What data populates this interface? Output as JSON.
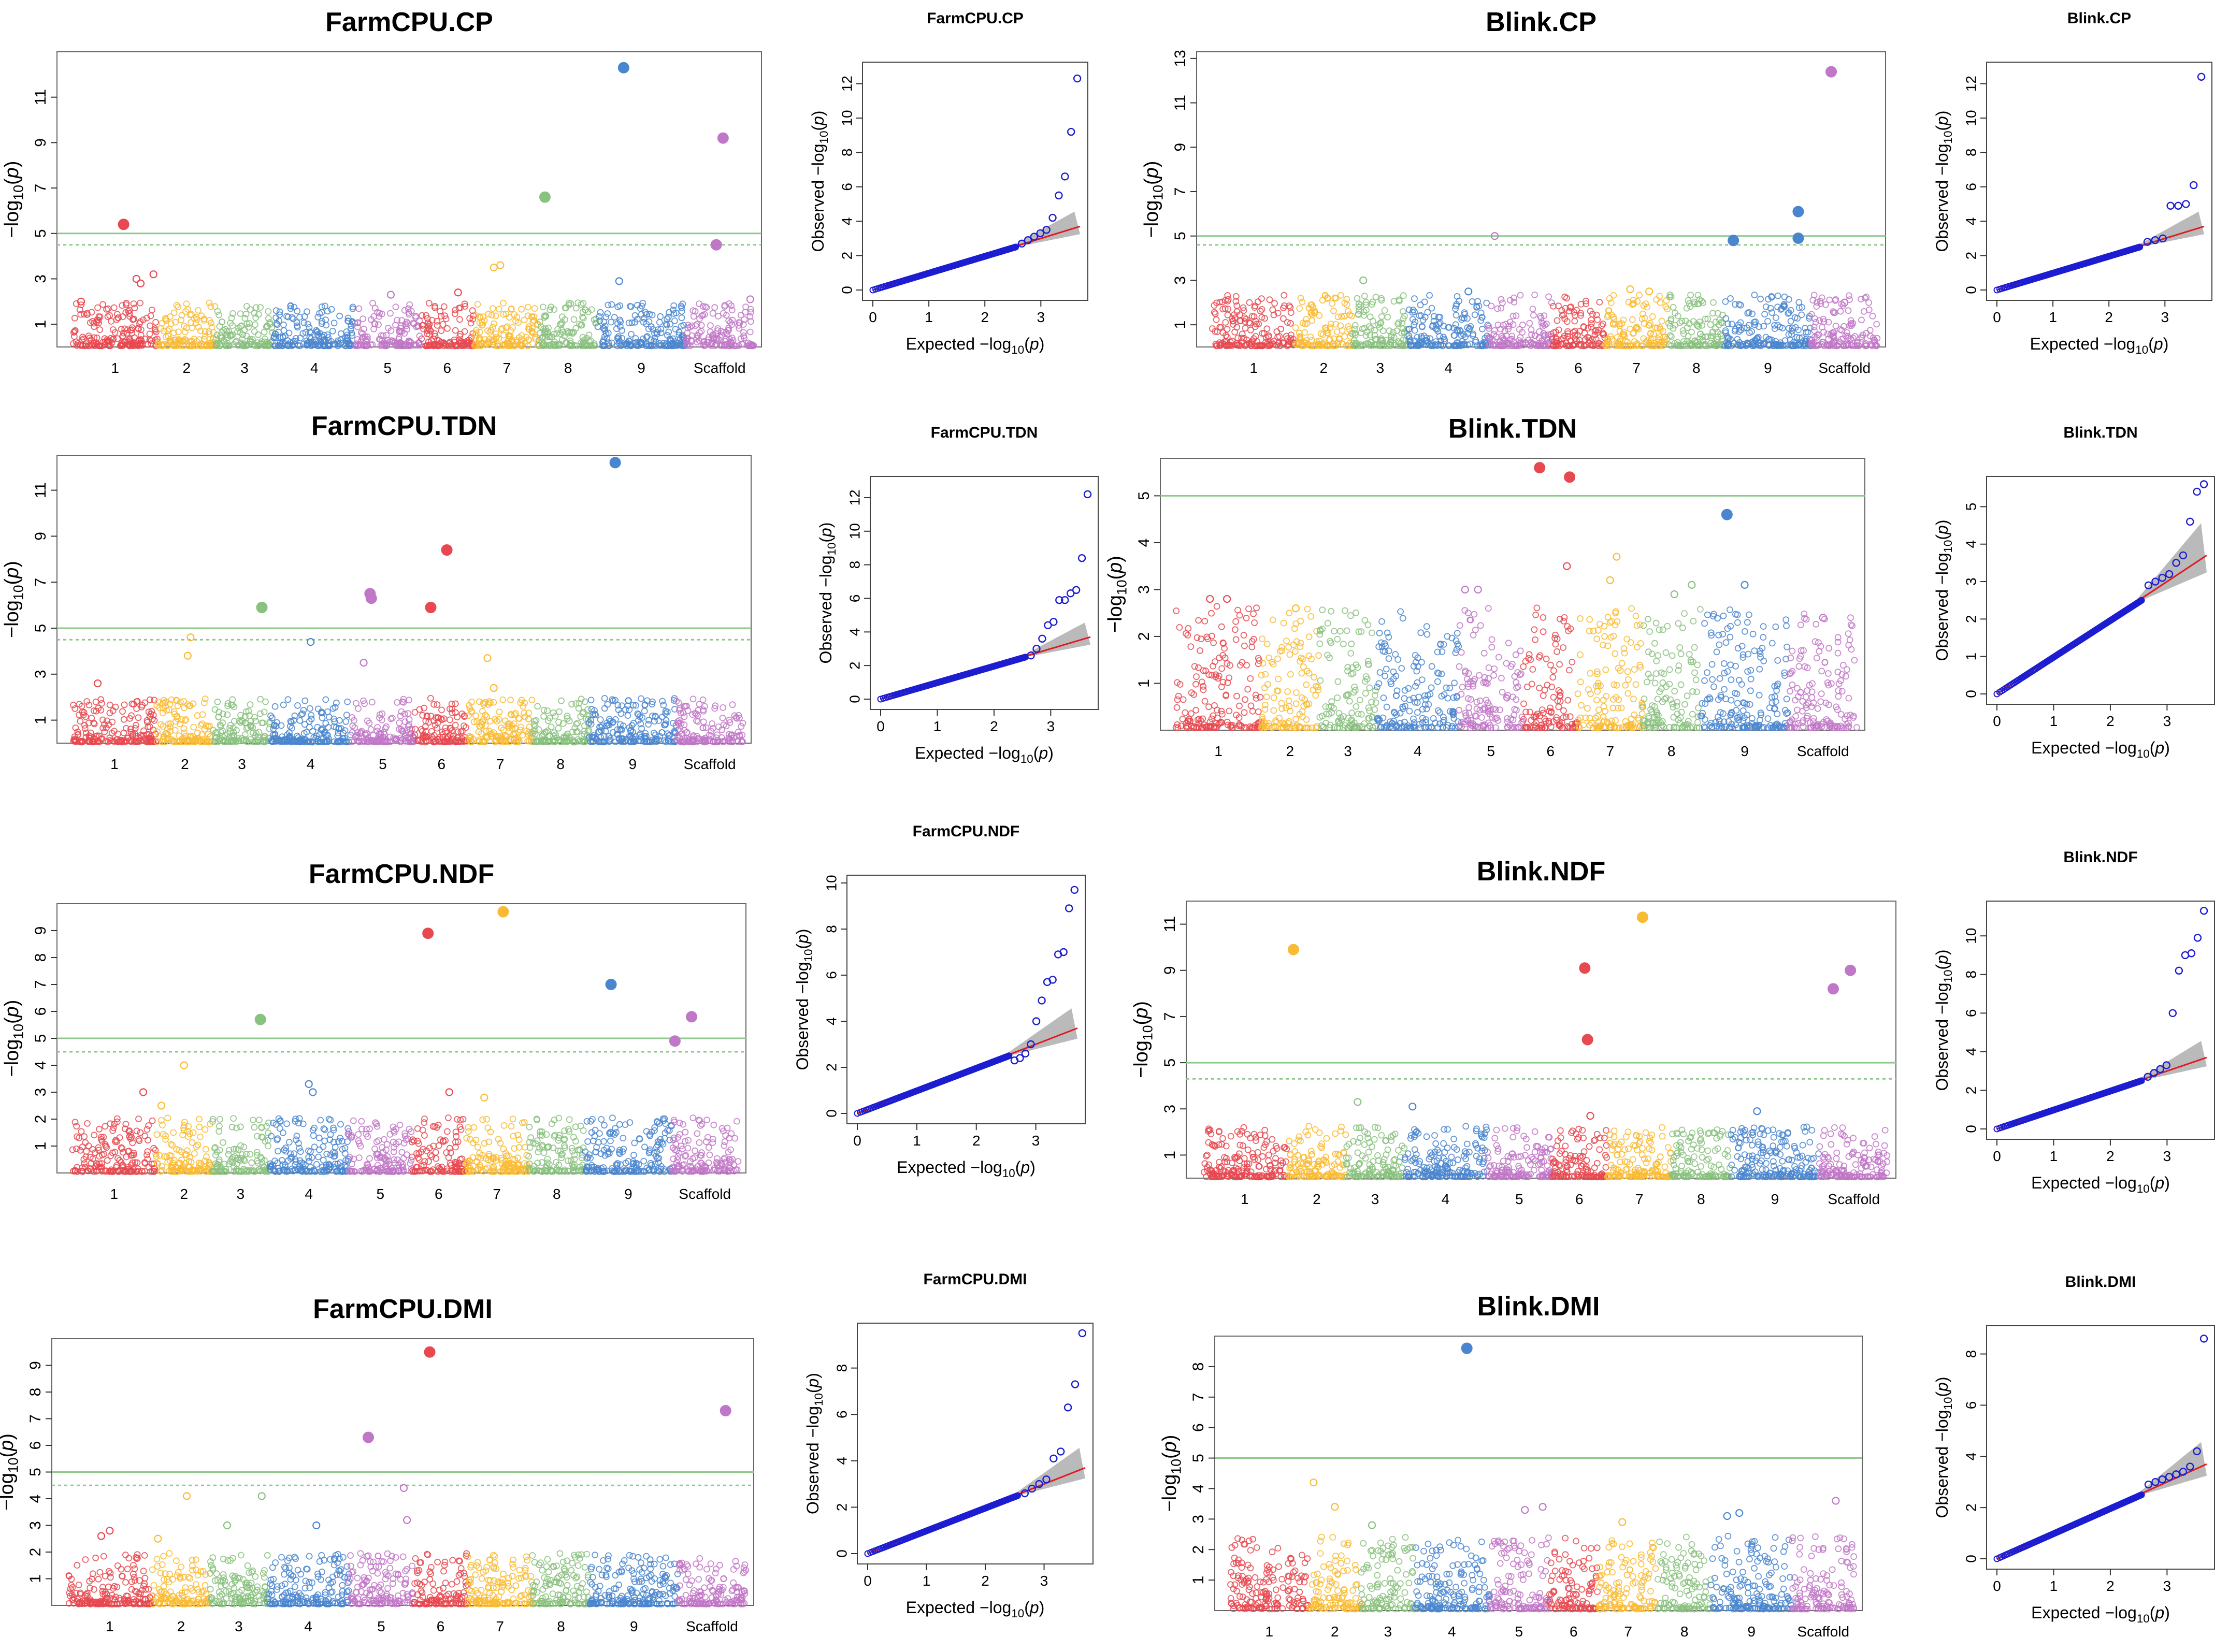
{
  "colors": {
    "chr1": "#e8484f",
    "chr2": "#f9bb34",
    "chr3": "#89c17f",
    "chr4": "#4a86cf",
    "chr5": "#c177c7",
    "chr6": "#e8484f",
    "chr7": "#f9bb34",
    "chr8": "#89c17f",
    "chr9": "#4a86cf",
    "scaffold": "#c177c7",
    "threshold": "#8dc98a",
    "qq_points": "#1c1cd1",
    "qq_line": "#e0191f",
    "qq_band": "#b3b3b3"
  },
  "chart_data": [
    {
      "type": "scatter",
      "id": "manhattan-farmcpu-cp",
      "title": "FarmCPU.CP",
      "ylabel": "−log10(p)",
      "chromosomes": [
        "1",
        "2",
        "3",
        "4",
        "5",
        "6",
        "7",
        "8",
        "9",
        "Scaffold"
      ],
      "yticks": [
        1,
        3,
        5,
        7,
        9,
        11
      ],
      "ylim": [
        0,
        13
      ],
      "thresholds": [
        5.0,
        4.5
      ],
      "noise_max": 1.9,
      "highlight": [
        {
          "chr": "1",
          "pos": 0.6,
          "y": 5.4,
          "big": true
        },
        {
          "chr": "1",
          "pos": 0.75,
          "y": 3.0
        },
        {
          "chr": "1",
          "pos": 0.8,
          "y": 2.8
        },
        {
          "chr": "1",
          "pos": 0.95,
          "y": 3.2
        },
        {
          "chr": "1",
          "pos": 0.1,
          "y": 2.0
        },
        {
          "chr": "5",
          "pos": 0.55,
          "y": 2.3
        },
        {
          "chr": "6",
          "pos": 0.7,
          "y": 2.4
        },
        {
          "chr": "7",
          "pos": 0.3,
          "y": 3.5
        },
        {
          "chr": "7",
          "pos": 0.4,
          "y": 3.6
        },
        {
          "chr": "8",
          "pos": 0.1,
          "y": 6.6,
          "big": true
        },
        {
          "chr": "9",
          "pos": 0.3,
          "y": 12.3,
          "big": true
        },
        {
          "chr": "9",
          "pos": 0.25,
          "y": 2.9
        },
        {
          "chr": "Scaffold",
          "pos": 0.55,
          "y": 9.2,
          "big": true
        },
        {
          "chr": "Scaffold",
          "pos": 0.45,
          "y": 4.5,
          "big": true
        },
        {
          "chr": "Scaffold",
          "pos": 0.95,
          "y": 2.1
        }
      ]
    },
    {
      "type": "scatter",
      "id": "qq-farmcpu-cp",
      "title": "FarmCPU.CP",
      "xlabel": "Expected  −log10(p)",
      "ylabel": "Observed  −log10(p)",
      "xticks": [
        0,
        1,
        2,
        3
      ],
      "yticks": [
        0,
        2,
        4,
        6,
        8,
        10,
        12
      ],
      "xlim": [
        0,
        3.7
      ],
      "ylim": [
        0,
        12.8
      ],
      "tail": [
        2.7,
        2.9,
        3.1,
        3.3,
        3.5,
        4.2,
        5.5,
        6.6,
        9.2,
        12.3
      ]
    },
    {
      "type": "scatter",
      "id": "manhattan-blink-cp",
      "title": "Blink.CP",
      "ylabel": "−log10(p)",
      "chromosomes": [
        "1",
        "2",
        "3",
        "4",
        "5",
        "6",
        "7",
        "8",
        "9",
        "Scaffold"
      ],
      "yticks": [
        1,
        3,
        5,
        7,
        9,
        11,
        13
      ],
      "ylim": [
        0,
        13.3
      ],
      "thresholds": [
        5.0,
        4.6
      ],
      "noise_max": 2.3,
      "highlight": [
        {
          "chr": "3",
          "pos": 0.2,
          "y": 3.0
        },
        {
          "chr": "4",
          "pos": 0.75,
          "y": 2.5
        },
        {
          "chr": "5",
          "pos": 0.1,
          "y": 5.0
        },
        {
          "chr": "7",
          "pos": 0.4,
          "y": 2.6
        },
        {
          "chr": "7",
          "pos": 0.7,
          "y": 2.5
        },
        {
          "chr": "9",
          "pos": 0.1,
          "y": 4.8,
          "big": true
        },
        {
          "chr": "9",
          "pos": 0.85,
          "y": 6.1,
          "big": true
        },
        {
          "chr": "9",
          "pos": 0.85,
          "y": 4.9,
          "big": true
        },
        {
          "chr": "Scaffold",
          "pos": 0.3,
          "y": 12.4,
          "big": true
        },
        {
          "chr": "Scaffold",
          "pos": 0.5,
          "y": 2.0
        }
      ]
    },
    {
      "type": "scatter",
      "id": "qq-blink-cp",
      "title": "Blink.CP",
      "xlabel": "Expected  −log10(p)",
      "ylabel": "Observed  −log10(p)",
      "xticks": [
        0,
        1,
        2,
        3
      ],
      "yticks": [
        0,
        2,
        4,
        6,
        8,
        10,
        12
      ],
      "xlim": [
        0,
        3.7
      ],
      "ylim": [
        0,
        12.8
      ],
      "tail": [
        2.8,
        2.9,
        3.0,
        4.9,
        4.9,
        5.0,
        6.1,
        12.4
      ]
    },
    {
      "type": "scatter",
      "id": "manhattan-farmcpu-tdn",
      "title": "FarmCPU.TDN",
      "ylabel": "−log10(p)",
      "chromosomes": [
        "1",
        "2",
        "3",
        "4",
        "5",
        "6",
        "7",
        "8",
        "9",
        "Scaffold"
      ],
      "yticks": [
        1,
        3,
        5,
        7,
        9,
        11
      ],
      "ylim": [
        0,
        12.5
      ],
      "thresholds": [
        5.0,
        4.5
      ],
      "noise_max": 1.9,
      "highlight": [
        {
          "chr": "1",
          "pos": 0.3,
          "y": 2.6
        },
        {
          "chr": "2",
          "pos": 0.6,
          "y": 4.6
        },
        {
          "chr": "2",
          "pos": 0.55,
          "y": 3.8
        },
        {
          "chr": "3",
          "pos": 0.85,
          "y": 5.9,
          "big": true
        },
        {
          "chr": "4",
          "pos": 0.5,
          "y": 4.4
        },
        {
          "chr": "5",
          "pos": 0.3,
          "y": 6.5,
          "big": true
        },
        {
          "chr": "5",
          "pos": 0.32,
          "y": 6.3,
          "big": true
        },
        {
          "chr": "5",
          "pos": 0.2,
          "y": 3.5
        },
        {
          "chr": "6",
          "pos": 0.3,
          "y": 5.9,
          "big": true
        },
        {
          "chr": "6",
          "pos": 0.6,
          "y": 8.4,
          "big": true
        },
        {
          "chr": "7",
          "pos": 0.3,
          "y": 3.7
        },
        {
          "chr": "7",
          "pos": 0.4,
          "y": 2.4
        },
        {
          "chr": "9",
          "pos": 0.3,
          "y": 12.2,
          "big": true
        }
      ]
    },
    {
      "type": "scatter",
      "id": "qq-farmcpu-tdn",
      "title": "FarmCPU.TDN",
      "xlabel": "Expected  −log10(p)",
      "ylabel": "Observed  −log10(p)",
      "xticks": [
        0,
        1,
        2,
        3
      ],
      "yticks": [
        0,
        2,
        4,
        6,
        8,
        10,
        12
      ],
      "xlim": [
        0,
        3.7
      ],
      "ylim": [
        0,
        12.8
      ],
      "tail": [
        2.6,
        3.0,
        3.6,
        4.4,
        4.6,
        5.9,
        5.9,
        6.3,
        6.5,
        8.4,
        12.2
      ]
    },
    {
      "type": "scatter",
      "id": "manhattan-blink-tdn",
      "title": "Blink.TDN",
      "ylabel": "−log10(p)",
      "chromosomes": [
        "1",
        "2",
        "3",
        "4",
        "5",
        "6",
        "7",
        "8",
        "9",
        "Scaffold"
      ],
      "yticks": [
        1,
        2,
        3,
        4,
        5
      ],
      "ylim": [
        0,
        5.8
      ],
      "thresholds": [
        5.0
      ],
      "noise_max": 2.6,
      "highlight": [
        {
          "chr": "1",
          "pos": 0.4,
          "y": 2.8
        },
        {
          "chr": "1",
          "pos": 0.6,
          "y": 2.8
        },
        {
          "chr": "2",
          "pos": 0.6,
          "y": 2.6
        },
        {
          "chr": "5",
          "pos": 0.1,
          "y": 3.0
        },
        {
          "chr": "5",
          "pos": 0.3,
          "y": 3.0
        },
        {
          "chr": "6",
          "pos": 0.3,
          "y": 5.6,
          "big": true
        },
        {
          "chr": "6",
          "pos": 0.85,
          "y": 5.4,
          "big": true
        },
        {
          "chr": "6",
          "pos": 0.8,
          "y": 3.5
        },
        {
          "chr": "7",
          "pos": 0.6,
          "y": 3.7
        },
        {
          "chr": "7",
          "pos": 0.5,
          "y": 3.2
        },
        {
          "chr": "8",
          "pos": 0.55,
          "y": 2.9
        },
        {
          "chr": "8",
          "pos": 0.85,
          "y": 3.1
        },
        {
          "chr": "9",
          "pos": 0.3,
          "y": 4.6,
          "big": true
        },
        {
          "chr": "9",
          "pos": 0.5,
          "y": 3.1
        },
        {
          "chr": "Scaffold",
          "pos": 0.5,
          "y": 2.4
        }
      ]
    },
    {
      "type": "scatter",
      "id": "qq-blink-tdn",
      "title": "Blink.TDN",
      "xlabel": "Expected  −log10(p)",
      "ylabel": "Observed  −log10(p)",
      "xticks": [
        0,
        1,
        2,
        3
      ],
      "yticks": [
        0,
        1,
        2,
        3,
        4,
        5
      ],
      "xlim": [
        0,
        3.7
      ],
      "ylim": [
        0,
        5.6
      ],
      "tail": [
        2.9,
        3.0,
        3.1,
        3.2,
        3.5,
        3.7,
        4.6,
        5.4,
        5.6
      ]
    },
    {
      "type": "scatter",
      "id": "manhattan-farmcpu-ndf",
      "title": "FarmCPU.NDF",
      "ylabel": "−log10(p)",
      "chromosomes": [
        "1",
        "2",
        "3",
        "4",
        "5",
        "6",
        "7",
        "8",
        "9",
        "Scaffold"
      ],
      "yticks": [
        1,
        2,
        3,
        4,
        5,
        6,
        7,
        8,
        9
      ],
      "ylim": [
        0,
        10
      ],
      "thresholds": [
        5.0,
        4.5
      ],
      "noise_max": 2.0,
      "highlight": [
        {
          "chr": "1",
          "pos": 0.85,
          "y": 3.0
        },
        {
          "chr": "2",
          "pos": 0.1,
          "y": 2.5
        },
        {
          "chr": "2",
          "pos": 0.5,
          "y": 4.0
        },
        {
          "chr": "3",
          "pos": 0.85,
          "y": 5.7,
          "big": true
        },
        {
          "chr": "4",
          "pos": 0.5,
          "y": 3.3
        },
        {
          "chr": "4",
          "pos": 0.55,
          "y": 3.0
        },
        {
          "chr": "6",
          "pos": 0.3,
          "y": 8.9,
          "big": true
        },
        {
          "chr": "6",
          "pos": 0.7,
          "y": 3.0
        },
        {
          "chr": "7",
          "pos": 0.6,
          "y": 9.7,
          "big": true
        },
        {
          "chr": "7",
          "pos": 0.3,
          "y": 2.8
        },
        {
          "chr": "9",
          "pos": 0.3,
          "y": 7.0,
          "big": true
        },
        {
          "chr": "Scaffold",
          "pos": 0.05,
          "y": 4.9,
          "big": true
        },
        {
          "chr": "Scaffold",
          "pos": 0.3,
          "y": 5.8,
          "big": true
        }
      ]
    },
    {
      "type": "scatter",
      "id": "qq-farmcpu-ndf",
      "title": "FarmCPU.NDF",
      "xlabel": "Expected  −log10(p)",
      "ylabel": "Observed  −log10(p)",
      "xticks": [
        0,
        1,
        2,
        3
      ],
      "yticks": [
        0,
        2,
        4,
        6,
        8,
        10
      ],
      "xlim": [
        0,
        3.7
      ],
      "ylim": [
        0,
        10
      ],
      "tail": [
        2.3,
        2.4,
        2.6,
        3.0,
        4.0,
        4.9,
        5.7,
        5.8,
        6.9,
        7.0,
        8.9,
        9.7
      ]
    },
    {
      "type": "scatter",
      "id": "manhattan-blink-ndf",
      "title": "Blink.NDF",
      "ylabel": "−log10(p)",
      "chromosomes": [
        "1",
        "2",
        "3",
        "4",
        "5",
        "6",
        "7",
        "8",
        "9",
        "Scaffold"
      ],
      "yticks": [
        1,
        3,
        5,
        7,
        9,
        11
      ],
      "ylim": [
        0,
        12
      ],
      "thresholds": [
        5.0,
        4.3
      ],
      "noise_max": 2.2,
      "highlight": [
        {
          "chr": "2",
          "pos": 0.1,
          "y": 9.9,
          "big": true
        },
        {
          "chr": "3",
          "pos": 0.2,
          "y": 3.3
        },
        {
          "chr": "4",
          "pos": 0.1,
          "y": 3.1
        },
        {
          "chr": "6",
          "pos": 0.6,
          "y": 9.1,
          "big": true
        },
        {
          "chr": "6",
          "pos": 0.65,
          "y": 6.0,
          "big": true
        },
        {
          "chr": "6",
          "pos": 0.7,
          "y": 2.7
        },
        {
          "chr": "7",
          "pos": 0.55,
          "y": 11.3,
          "big": true
        },
        {
          "chr": "9",
          "pos": 0.3,
          "y": 2.9
        },
        {
          "chr": "Scaffold",
          "pos": 0.2,
          "y": 8.2,
          "big": true
        },
        {
          "chr": "Scaffold",
          "pos": 0.45,
          "y": 9.0,
          "big": true
        }
      ]
    },
    {
      "type": "scatter",
      "id": "qq-blink-ndf",
      "title": "Blink.NDF",
      "xlabel": "Expected  −log10(p)",
      "ylabel": "Observed  −log10(p)",
      "xticks": [
        0,
        1,
        2,
        3
      ],
      "yticks": [
        0,
        2,
        4,
        6,
        8,
        10
      ],
      "xlim": [
        0,
        3.7
      ],
      "ylim": [
        0,
        11.4
      ],
      "tail": [
        2.7,
        2.9,
        3.1,
        3.3,
        6.0,
        8.2,
        9.0,
        9.1,
        9.9,
        11.3
      ]
    },
    {
      "type": "scatter",
      "id": "manhattan-farmcpu-dmi",
      "title": "FarmCPU.DMI",
      "ylabel": "−log10(p)",
      "chromosomes": [
        "1",
        "2",
        "3",
        "4",
        "5",
        "6",
        "7",
        "8",
        "9",
        "Scaffold"
      ],
      "yticks": [
        1,
        2,
        3,
        4,
        5,
        6,
        7,
        8,
        9
      ],
      "ylim": [
        0,
        10
      ],
      "thresholds": [
        5.0,
        4.5
      ],
      "noise_max": 1.9,
      "highlight": [
        {
          "chr": "1",
          "pos": 0.4,
          "y": 2.6
        },
        {
          "chr": "1",
          "pos": 0.5,
          "y": 2.8
        },
        {
          "chr": "2",
          "pos": 0.1,
          "y": 2.5
        },
        {
          "chr": "2",
          "pos": 0.6,
          "y": 4.1
        },
        {
          "chr": "3",
          "pos": 0.3,
          "y": 3.0
        },
        {
          "chr": "3",
          "pos": 0.9,
          "y": 4.1
        },
        {
          "chr": "4",
          "pos": 0.6,
          "y": 3.0
        },
        {
          "chr": "5",
          "pos": 0.3,
          "y": 6.3,
          "big": true
        },
        {
          "chr": "5",
          "pos": 0.85,
          "y": 4.4
        },
        {
          "chr": "5",
          "pos": 0.9,
          "y": 3.2
        },
        {
          "chr": "6",
          "pos": 0.3,
          "y": 9.5,
          "big": true
        },
        {
          "chr": "Scaffold",
          "pos": 0.7,
          "y": 7.3,
          "big": true
        }
      ]
    },
    {
      "type": "scatter",
      "id": "qq-farmcpu-dmi",
      "title": "FarmCPU.DMI",
      "xlabel": "Expected  −log10(p)",
      "ylabel": "Observed  −log10(p)",
      "xticks": [
        0,
        1,
        2,
        3
      ],
      "yticks": [
        0,
        2,
        4,
        6,
        8
      ],
      "xlim": [
        0,
        3.7
      ],
      "ylim": [
        0,
        9.6
      ],
      "tail": [
        2.6,
        2.8,
        3.0,
        3.2,
        4.1,
        4.4,
        6.3,
        7.3,
        9.5
      ]
    },
    {
      "type": "scatter",
      "id": "manhattan-blink-dmi",
      "title": "Blink.DMI",
      "ylabel": "−log10(p)",
      "chromosomes": [
        "1",
        "2",
        "3",
        "4",
        "5",
        "6",
        "7",
        "8",
        "9",
        "Scaffold"
      ],
      "yticks": [
        1,
        2,
        3,
        4,
        5,
        6,
        7,
        8
      ],
      "ylim": [
        0,
        9
      ],
      "thresholds": [
        5.0
      ],
      "noise_max": 2.4,
      "highlight": [
        {
          "chr": "2",
          "pos": 0.1,
          "y": 4.2
        },
        {
          "chr": "2",
          "pos": 0.5,
          "y": 3.4
        },
        {
          "chr": "3",
          "pos": 0.2,
          "y": 2.8
        },
        {
          "chr": "4",
          "pos": 0.7,
          "y": 8.6,
          "big": true
        },
        {
          "chr": "5",
          "pos": 0.6,
          "y": 3.3
        },
        {
          "chr": "5",
          "pos": 0.9,
          "y": 3.4
        },
        {
          "chr": "7",
          "pos": 0.4,
          "y": 2.9
        },
        {
          "chr": "9",
          "pos": 0.2,
          "y": 3.1
        },
        {
          "chr": "9",
          "pos": 0.35,
          "y": 3.2
        },
        {
          "chr": "Scaffold",
          "pos": 0.7,
          "y": 3.6
        }
      ]
    },
    {
      "type": "scatter",
      "id": "qq-blink-dmi",
      "title": "Blink.DMI",
      "xlabel": "Expected  −log10(p)",
      "ylabel": "Observed  −log10(p)",
      "xticks": [
        0,
        1,
        2,
        3
      ],
      "yticks": [
        0,
        2,
        4,
        6,
        8
      ],
      "xlim": [
        0,
        3.7
      ],
      "ylim": [
        0,
        8.8
      ],
      "tail": [
        2.9,
        3.0,
        3.1,
        3.2,
        3.3,
        3.4,
        3.6,
        4.2,
        8.6
      ]
    }
  ]
}
